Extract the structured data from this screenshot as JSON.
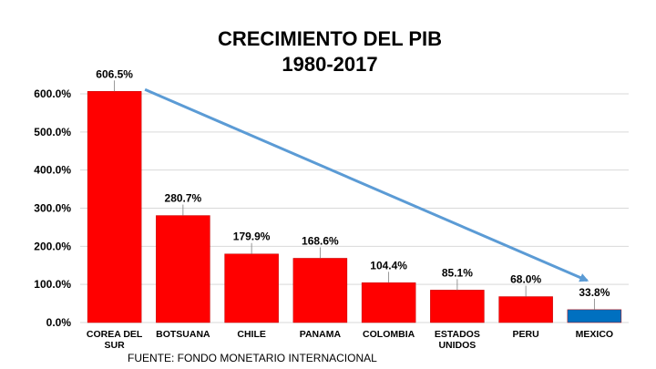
{
  "chart_data": {
    "type": "bar",
    "title_lines": [
      "CRECIMIENTO DEL PIB",
      "1980-2017"
    ],
    "categories": [
      [
        "COREA DEL",
        "SUR"
      ],
      [
        "BOTSUANA"
      ],
      [
        "CHILE"
      ],
      [
        "PANAMA"
      ],
      [
        "COLOMBIA"
      ],
      [
        "ESTADOS",
        "UNIDOS"
      ],
      [
        "PERU"
      ],
      [
        "MEXICO"
      ]
    ],
    "values": [
      606.5,
      280.7,
      179.9,
      168.6,
      104.4,
      85.1,
      68.0,
      33.8
    ],
    "data_labels": [
      "606.5%",
      "280.7%",
      "179.9%",
      "168.6%",
      "104.4%",
      "85.1%",
      "68.0%",
      "33.8%"
    ],
    "bar_colors": [
      "#ff0000",
      "#ff0000",
      "#ff0000",
      "#ff0000",
      "#ff0000",
      "#ff0000",
      "#ff0000",
      "#0070c0"
    ],
    "y_ticks": [
      0,
      100,
      200,
      300,
      400,
      500,
      600
    ],
    "y_tick_labels": [
      "0.0%",
      "100.0%",
      "200.0%",
      "300.0%",
      "400.0%",
      "500.0%",
      "600.0%"
    ],
    "ylim": [
      0,
      600
    ],
    "grid": true,
    "annotation": "trend arrow from first bar down to last bar",
    "arrow_color": "#5b9bd5",
    "gridline_color": "#d9d9d9",
    "xlabel": "",
    "ylabel": ""
  },
  "footer": {
    "source": "FUENTE: FONDO MONETARIO INTERNACIONAL"
  }
}
